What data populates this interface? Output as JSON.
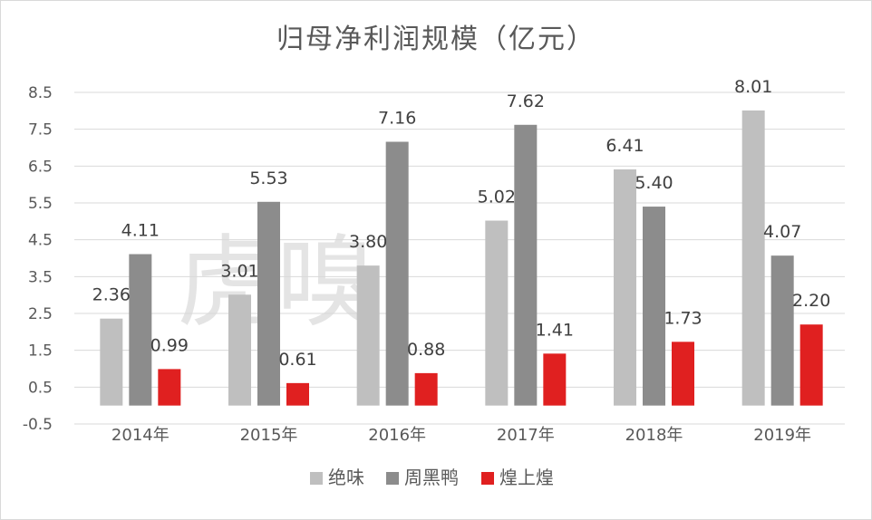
{
  "chart_data": {
    "type": "bar",
    "title": "归母净利润规模（亿元）",
    "categories": [
      "2014年",
      "2015年",
      "2016年",
      "2017年",
      "2018年",
      "2019年"
    ],
    "series": [
      {
        "name": "绝味",
        "color": "#bfbfbf",
        "values": [
          2.36,
          3.01,
          3.8,
          5.02,
          6.41,
          8.01
        ],
        "labels": [
          "2.36",
          "3.01",
          "3.80",
          "5.02",
          "6.41",
          "8.01"
        ]
      },
      {
        "name": "周黑鸭",
        "color": "#8c8c8c",
        "values": [
          4.11,
          5.53,
          7.16,
          7.62,
          5.4,
          4.07
        ],
        "labels": [
          "4.11",
          "5.53",
          "7.16",
          "7.62",
          "5.40",
          "4.07"
        ]
      },
      {
        "name": "煌上煌",
        "color": "#e02020",
        "values": [
          0.99,
          0.61,
          0.88,
          1.41,
          1.73,
          2.2
        ],
        "labels": [
          "0.99",
          "0.61",
          "0.88",
          "1.41",
          "1.73",
          "2.20"
        ]
      }
    ],
    "yticks": [
      "-0.5",
      "0.5",
      "1.5",
      "2.5",
      "3.5",
      "4.5",
      "5.5",
      "6.5",
      "7.5",
      "8.5"
    ],
    "ylim": [
      -0.5,
      8.5
    ],
    "grid": true,
    "legend": "bottom"
  },
  "watermark": {
    "text": "虎嗅"
  }
}
